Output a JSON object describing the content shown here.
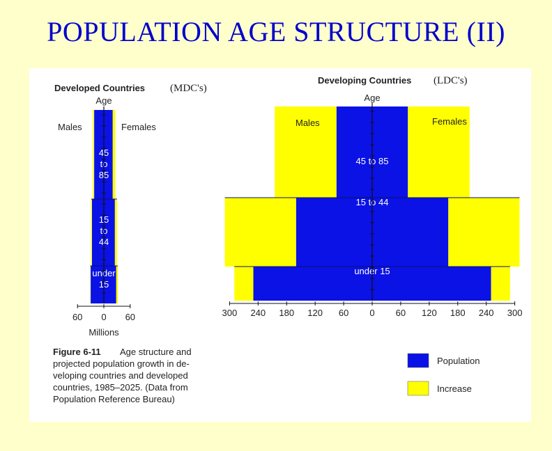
{
  "slide": {
    "title": "POPULATION AGE STRUCTURE (II)"
  },
  "colors": {
    "population": "#0a12e6",
    "increase": "#ffff00",
    "background": "#ffffcc",
    "title": "#0000cc"
  },
  "chart_data": [
    {
      "type": "bar",
      "orientation": "horizontal",
      "subtype": "population pyramid",
      "title": "Developed Countries",
      "title_annotation": "(MDC's)",
      "age_axis_label": "Age",
      "left_label": "Males",
      "right_label": "Females",
      "age_groups": [
        "45\nto\n85",
        "15\nto\n44",
        "under\n15"
      ],
      "xlabel": "Millions",
      "x_ticks": [
        "60",
        "0",
        "60"
      ],
      "xlim": [
        -60,
        60
      ],
      "series": [
        {
          "name": "Population",
          "males": [
            22,
            27,
            30
          ],
          "females": [
            20,
            25,
            28
          ]
        },
        {
          "name": "Increase",
          "males": [
            3,
            2,
            1
          ],
          "females": [
            6,
            5,
            4
          ]
        }
      ]
    },
    {
      "type": "bar",
      "orientation": "horizontal",
      "subtype": "population pyramid",
      "title": "Developing Countries",
      "title_annotation": "(LDC's)",
      "age_axis_label": "Age",
      "left_label": "Males",
      "right_label": "Females",
      "age_groups": [
        "45 to 85",
        "15 to 44",
        "under 15"
      ],
      "x_ticks": [
        "300",
        "240",
        "180",
        "120",
        "60",
        "0",
        "60",
        "120",
        "180",
        "240",
        "300"
      ],
      "xlim": [
        -300,
        300
      ],
      "series": [
        {
          "name": "Population",
          "males": [
            75,
            160,
            250
          ],
          "females": [
            75,
            160,
            250
          ]
        },
        {
          "name": "Increase",
          "males": [
            130,
            150,
            40
          ],
          "females": [
            130,
            150,
            40
          ]
        }
      ]
    }
  ],
  "legend": [
    {
      "label": "Population",
      "color": "#0a12e6"
    },
    {
      "label": "Increase",
      "color": "#ffff00"
    }
  ],
  "caption": {
    "label": "Figure 6-11",
    "lines": [
      "Age structure and",
      "projected population growth in de-",
      "veloping countries and developed",
      "countries, 1985–2025. (Data from",
      "Population Reference Bureau)"
    ]
  }
}
